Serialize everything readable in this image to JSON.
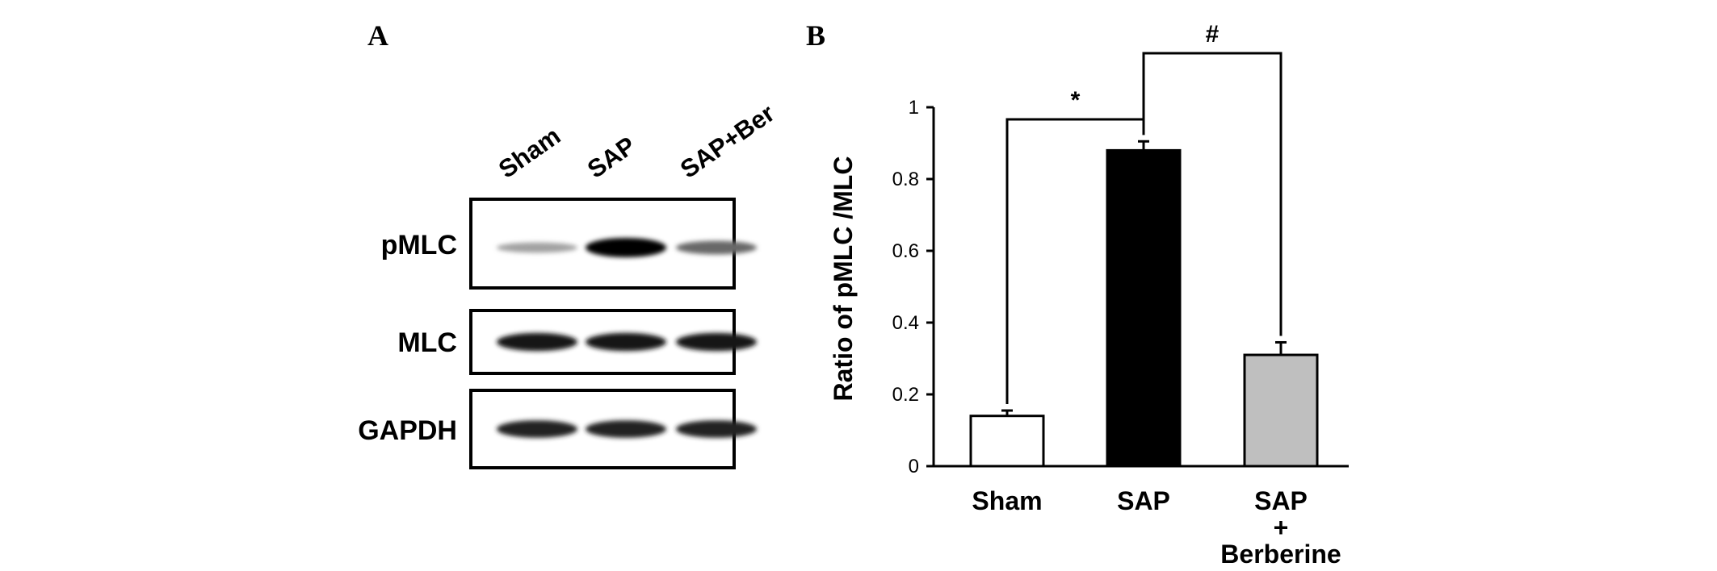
{
  "panel_a": {
    "label": "A",
    "lanes": [
      "Sham",
      "SAP",
      "SAP+Ber"
    ],
    "blots": [
      {
        "name": "pMLC",
        "intensity": [
          0.3,
          1.0,
          0.55
        ]
      },
      {
        "name": "MLC",
        "intensity": [
          0.9,
          0.9,
          0.9
        ]
      },
      {
        "name": "GAPDH",
        "intensity": [
          0.85,
          0.85,
          0.85
        ]
      }
    ]
  },
  "panel_b": {
    "label": "B"
  },
  "chart_data": {
    "type": "bar",
    "categories": [
      [
        "Sham"
      ],
      [
        "SAP"
      ],
      [
        "SAP",
        "+",
        "Berberine"
      ]
    ],
    "values": [
      0.14,
      0.88,
      0.31
    ],
    "errors": [
      0.015,
      0.025,
      0.035
    ],
    "bar_colors": [
      "#ffffff",
      "#000000",
      "#bfbfbf"
    ],
    "ylabel": "Ratio of pMLC /MLC",
    "xlabel": "",
    "ylim": [
      0,
      1
    ],
    "yticks": [
      "0",
      "0.2",
      "0.4",
      "0.6",
      "0.8",
      "1"
    ],
    "grid": false,
    "significance": [
      {
        "from": 0,
        "to": 1,
        "label": "*"
      },
      {
        "from": 1,
        "to": 2,
        "label": "#"
      }
    ]
  }
}
